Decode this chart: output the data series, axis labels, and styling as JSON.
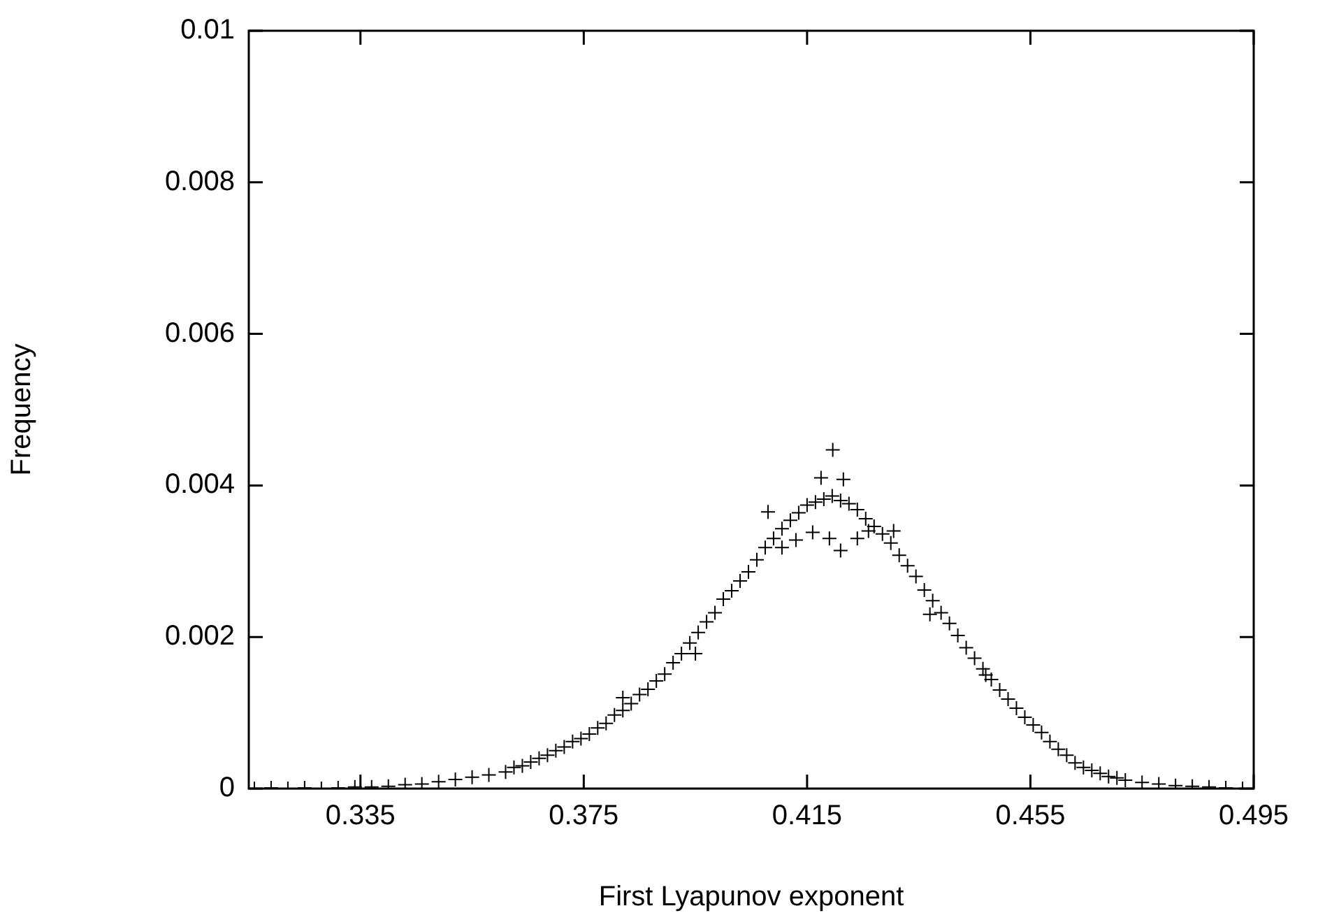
{
  "chart_data": {
    "type": "scatter",
    "xlabel": "First Lyapunov exponent",
    "ylabel": "Frequency",
    "marker": "cross",
    "grid": false,
    "legend": false,
    "xlim": [
      0.315,
      0.495
    ],
    "xticks": [
      0.335,
      0.375,
      0.415,
      0.455,
      0.495
    ],
    "ylim": [
      0,
      0.01
    ],
    "yticks": [
      0,
      0.002,
      0.004,
      0.006,
      0.008,
      0.01
    ],
    "series": [
      {
        "color": "#000000",
        "x": [
          0.316,
          0.319,
          0.322,
          0.325,
          0.328,
          0.331,
          0.334,
          0.337,
          0.34,
          0.343,
          0.346,
          0.349,
          0.352,
          0.355,
          0.358,
          0.361,
          0.3625,
          0.364,
          0.3655,
          0.367,
          0.3685,
          0.37,
          0.3715,
          0.373,
          0.3745,
          0.376,
          0.3775,
          0.379,
          0.3805,
          0.382,
          0.3835,
          0.385,
          0.3865,
          0.388,
          0.3895,
          0.391,
          0.3925,
          0.394,
          0.3955,
          0.397,
          0.3985,
          0.4,
          0.4015,
          0.403,
          0.4045,
          0.406,
          0.4075,
          0.409,
          0.4105,
          0.412,
          0.4135,
          0.415,
          0.4165,
          0.418,
          0.4195,
          0.421,
          0.4225,
          0.424,
          0.4255,
          0.427,
          0.4285,
          0.43,
          0.4315,
          0.433,
          0.4345,
          0.436,
          0.4375,
          0.439,
          0.4405,
          0.442,
          0.4435,
          0.445,
          0.4465,
          0.448,
          0.4495,
          0.451,
          0.4525,
          0.454,
          0.4555,
          0.457,
          0.4585,
          0.46,
          0.4615,
          0.463,
          0.4645,
          0.466,
          0.4675,
          0.469,
          0.4705,
          0.472,
          0.475,
          0.478,
          0.481,
          0.484,
          0.487,
          0.49,
          0.493,
          0.4105,
          0.413,
          0.416,
          0.419,
          0.421,
          0.424,
          0.4196,
          0.4175,
          0.4215,
          0.408,
          0.426,
          0.4305,
          0.395,
          0.382,
          0.447,
          0.437
        ],
        "values": [
          0,
          1e-05,
          0,
          1e-05,
          0,
          1e-05,
          2e-05,
          2e-05,
          3e-05,
          5e-05,
          6e-05,
          9e-05,
          0.00012,
          0.00015,
          0.00018,
          0.00022,
          0.00028,
          0.0003,
          0.00035,
          0.0004,
          0.00044,
          0.0005,
          0.00055,
          0.00062,
          0.00066,
          0.00072,
          0.0008,
          0.00086,
          0.00097,
          0.00103,
          0.00112,
          0.00124,
          0.00131,
          0.00142,
          0.00151,
          0.00166,
          0.00178,
          0.00192,
          0.00206,
          0.0022,
          0.00232,
          0.0025,
          0.00261,
          0.00274,
          0.00286,
          0.00302,
          0.00318,
          0.0033,
          0.00343,
          0.00354,
          0.00364,
          0.00374,
          0.00378,
          0.00382,
          0.00386,
          0.0038,
          0.00376,
          0.00368,
          0.00356,
          0.00346,
          0.00336,
          0.00324,
          0.00308,
          0.00294,
          0.0028,
          0.00262,
          0.00248,
          0.00232,
          0.00218,
          0.00202,
          0.00186,
          0.00172,
          0.00158,
          0.00144,
          0.0013,
          0.00118,
          0.00106,
          0.00094,
          0.00084,
          0.00074,
          0.00062,
          0.00052,
          0.00044,
          0.00034,
          0.00028,
          0.00024,
          0.0002,
          0.00016,
          0.00014,
          0.00011,
          8e-05,
          6e-05,
          4e-05,
          3e-05,
          2e-05,
          1e-05,
          0,
          0.00318,
          0.00328,
          0.00338,
          0.0033,
          0.00314,
          0.0033,
          0.00447,
          0.0041,
          0.00408,
          0.00365,
          0.0034,
          0.0034,
          0.00178,
          0.0012,
          0.0015,
          0.0023
        ]
      }
    ]
  }
}
